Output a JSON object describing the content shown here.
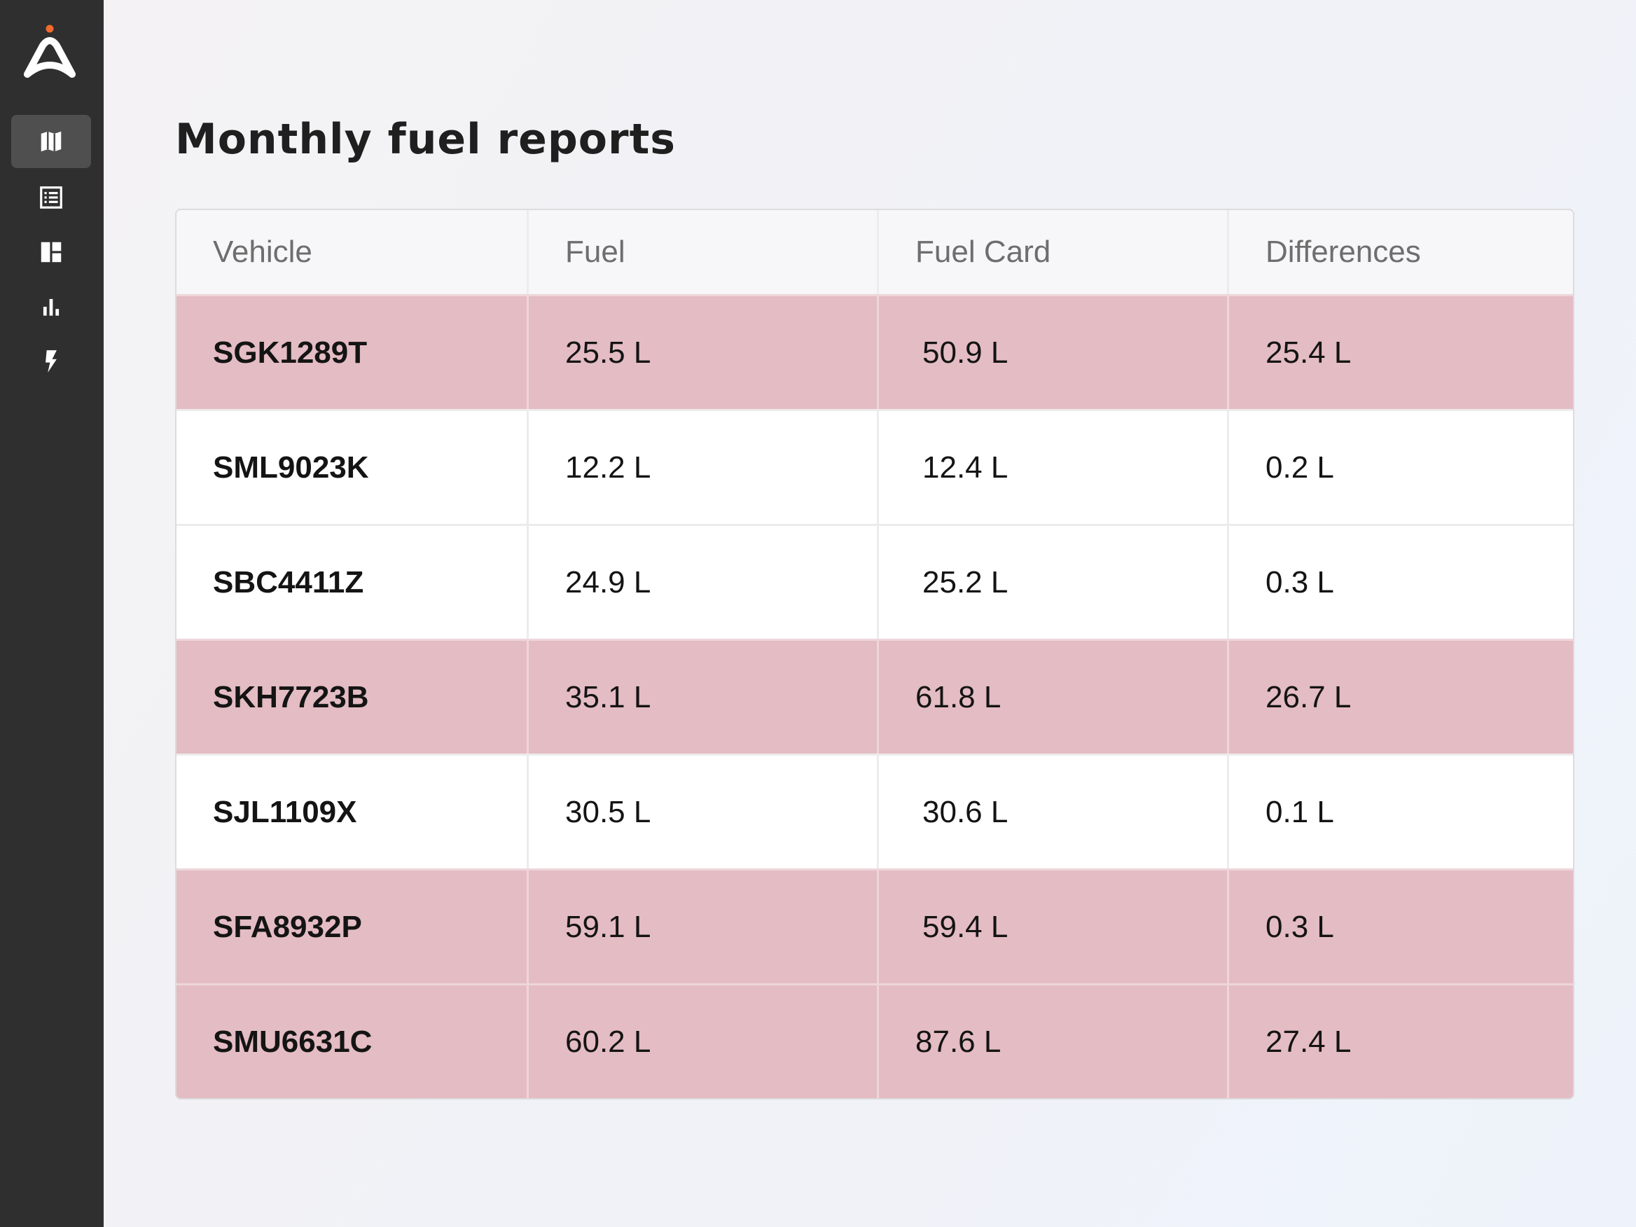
{
  "sidebar": {
    "logo": "brand-logo",
    "accent_color": "#f26a2e",
    "items": [
      {
        "icon": "map-icon",
        "active": true
      },
      {
        "icon": "list-icon",
        "active": false
      },
      {
        "icon": "dashboard-icon",
        "active": false
      },
      {
        "icon": "bar-chart-icon",
        "active": false
      },
      {
        "icon": "lightning-icon",
        "active": false
      }
    ]
  },
  "page": {
    "title": "Monthly fuel reports"
  },
  "table": {
    "headers": [
      "Vehicle",
      "Fuel",
      "Fuel Card",
      "Differences"
    ],
    "highlight_color": "#e4bcc3",
    "rows": [
      {
        "vehicle": "SGK1289T",
        "fuel": "25.5 L",
        "fuel_card": "50.9 L",
        "difference": "25.4 L",
        "flagged": true
      },
      {
        "vehicle": "SML9023K",
        "fuel": "12.2 L",
        "fuel_card": "12.4 L",
        "difference": "0.2 L",
        "flagged": false
      },
      {
        "vehicle": "SBC4411Z",
        "fuel": "24.9 L",
        "fuel_card": "25.2 L",
        "difference": "0.3 L",
        "flagged": false
      },
      {
        "vehicle": "SKH7723B",
        "fuel": "35.1 L",
        "fuel_card": "61.8 L",
        "difference": "26.7 L",
        "flagged": true
      },
      {
        "vehicle": "SJL1109X",
        "fuel": "30.5 L",
        "fuel_card": "30.6 L",
        "difference": "0.1 L",
        "flagged": false
      },
      {
        "vehicle": "SFA8932P",
        "fuel": "59.1 L",
        "fuel_card": "59.4 L",
        "difference": "0.3 L",
        "flagged": true
      },
      {
        "vehicle": "SMU6631C",
        "fuel": "60.2 L",
        "fuel_card": "87.6 L",
        "difference": "27.4 L",
        "flagged": true
      }
    ]
  }
}
